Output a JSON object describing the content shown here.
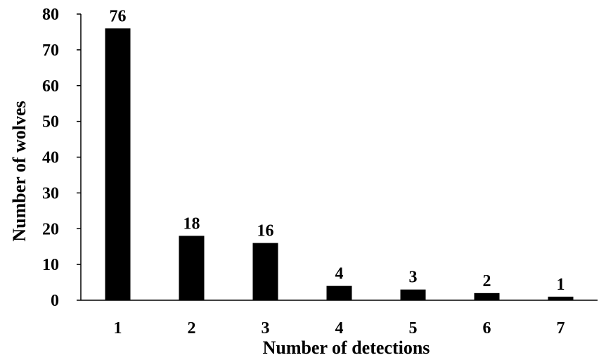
{
  "chart_data": {
    "type": "bar",
    "title": "",
    "xlabel": "Number of detections",
    "ylabel": "Number of wolves",
    "categories": [
      "1",
      "2",
      "3",
      "4",
      "5",
      "6",
      "7"
    ],
    "values": [
      76,
      18,
      16,
      4,
      3,
      2,
      1
    ],
    "data_labels": [
      "76",
      "18",
      "16",
      "4",
      "3",
      "2",
      "1"
    ],
    "ylim": [
      0,
      80
    ],
    "yticks": [
      0,
      10,
      20,
      30,
      40,
      50,
      60,
      70,
      80
    ],
    "grid": false,
    "legend": "none",
    "bar_color": "#000000"
  }
}
